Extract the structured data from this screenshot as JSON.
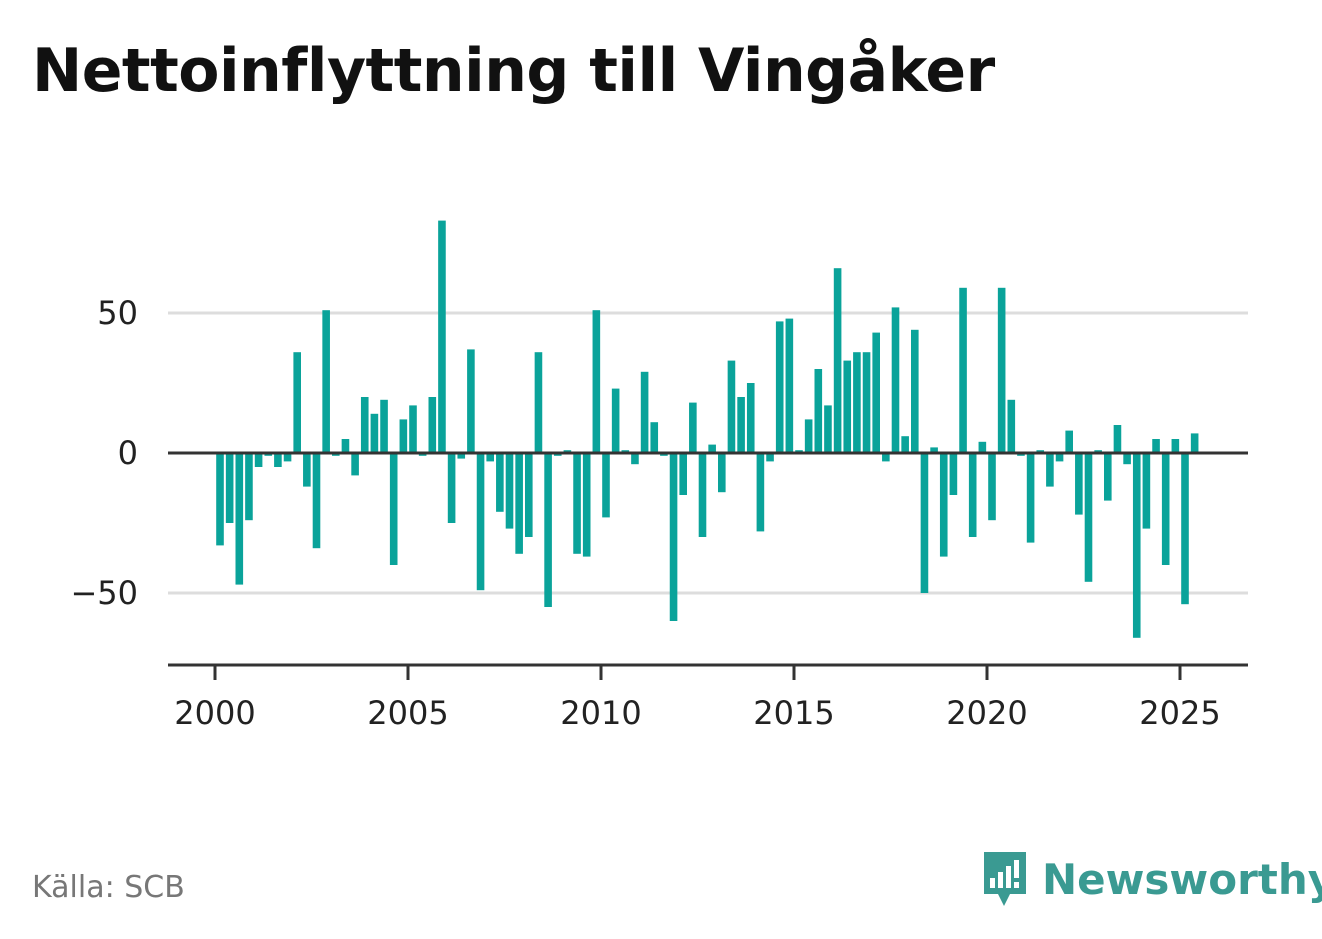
{
  "title": "Nettoinflyttning till Vingåker",
  "source": "Källa: SCB",
  "logo_text": "Newsworthy",
  "colors": {
    "bar": "#0aa39a",
    "grid": "#dddddd",
    "axis": "#333333",
    "logo": "#3a9a92"
  },
  "chart_data": {
    "type": "bar",
    "title": "Nettoinflyttning till Vingåker",
    "xlabel": "",
    "ylabel": "",
    "x_ticks": [
      "2000",
      "2005",
      "2010",
      "2015",
      "2020",
      "2025"
    ],
    "y_ticks": [
      "50",
      "0",
      "−50"
    ],
    "y_tick_values": [
      50,
      0,
      -50
    ],
    "ylim": [
      -75,
      85
    ],
    "xlim": [
      1999.3,
      2026.8
    ],
    "grid": true,
    "x_start": 2000.0,
    "x_step": 0.25,
    "values": [
      -33,
      -25,
      -47,
      -24,
      -5,
      -1,
      -5,
      -3,
      36,
      -12,
      -34,
      51,
      -1,
      5,
      -8,
      20,
      14,
      19,
      -40,
      12,
      17,
      -1,
      20,
      83,
      -25,
      -2,
      37,
      -49,
      -3,
      -21,
      -27,
      -36,
      -30,
      36,
      -55,
      -1,
      1,
      -36,
      -37,
      51,
      -23,
      23,
      1,
      -4,
      29,
      11,
      -1,
      -60,
      -15,
      18,
      -30,
      3,
      -14,
      33,
      20,
      25,
      -28,
      -3,
      47,
      48,
      1,
      12,
      30,
      17,
      66,
      33,
      36,
      36,
      43,
      -3,
      52,
      6,
      44,
      -50,
      2,
      -37,
      -15,
      59,
      -30,
      4,
      -24,
      59,
      19,
      -1,
      -32,
      1,
      -12,
      -3,
      8,
      -22,
      -46,
      1,
      -17,
      10,
      -4,
      -66,
      -27,
      5,
      -40,
      5,
      -54,
      7
    ]
  }
}
